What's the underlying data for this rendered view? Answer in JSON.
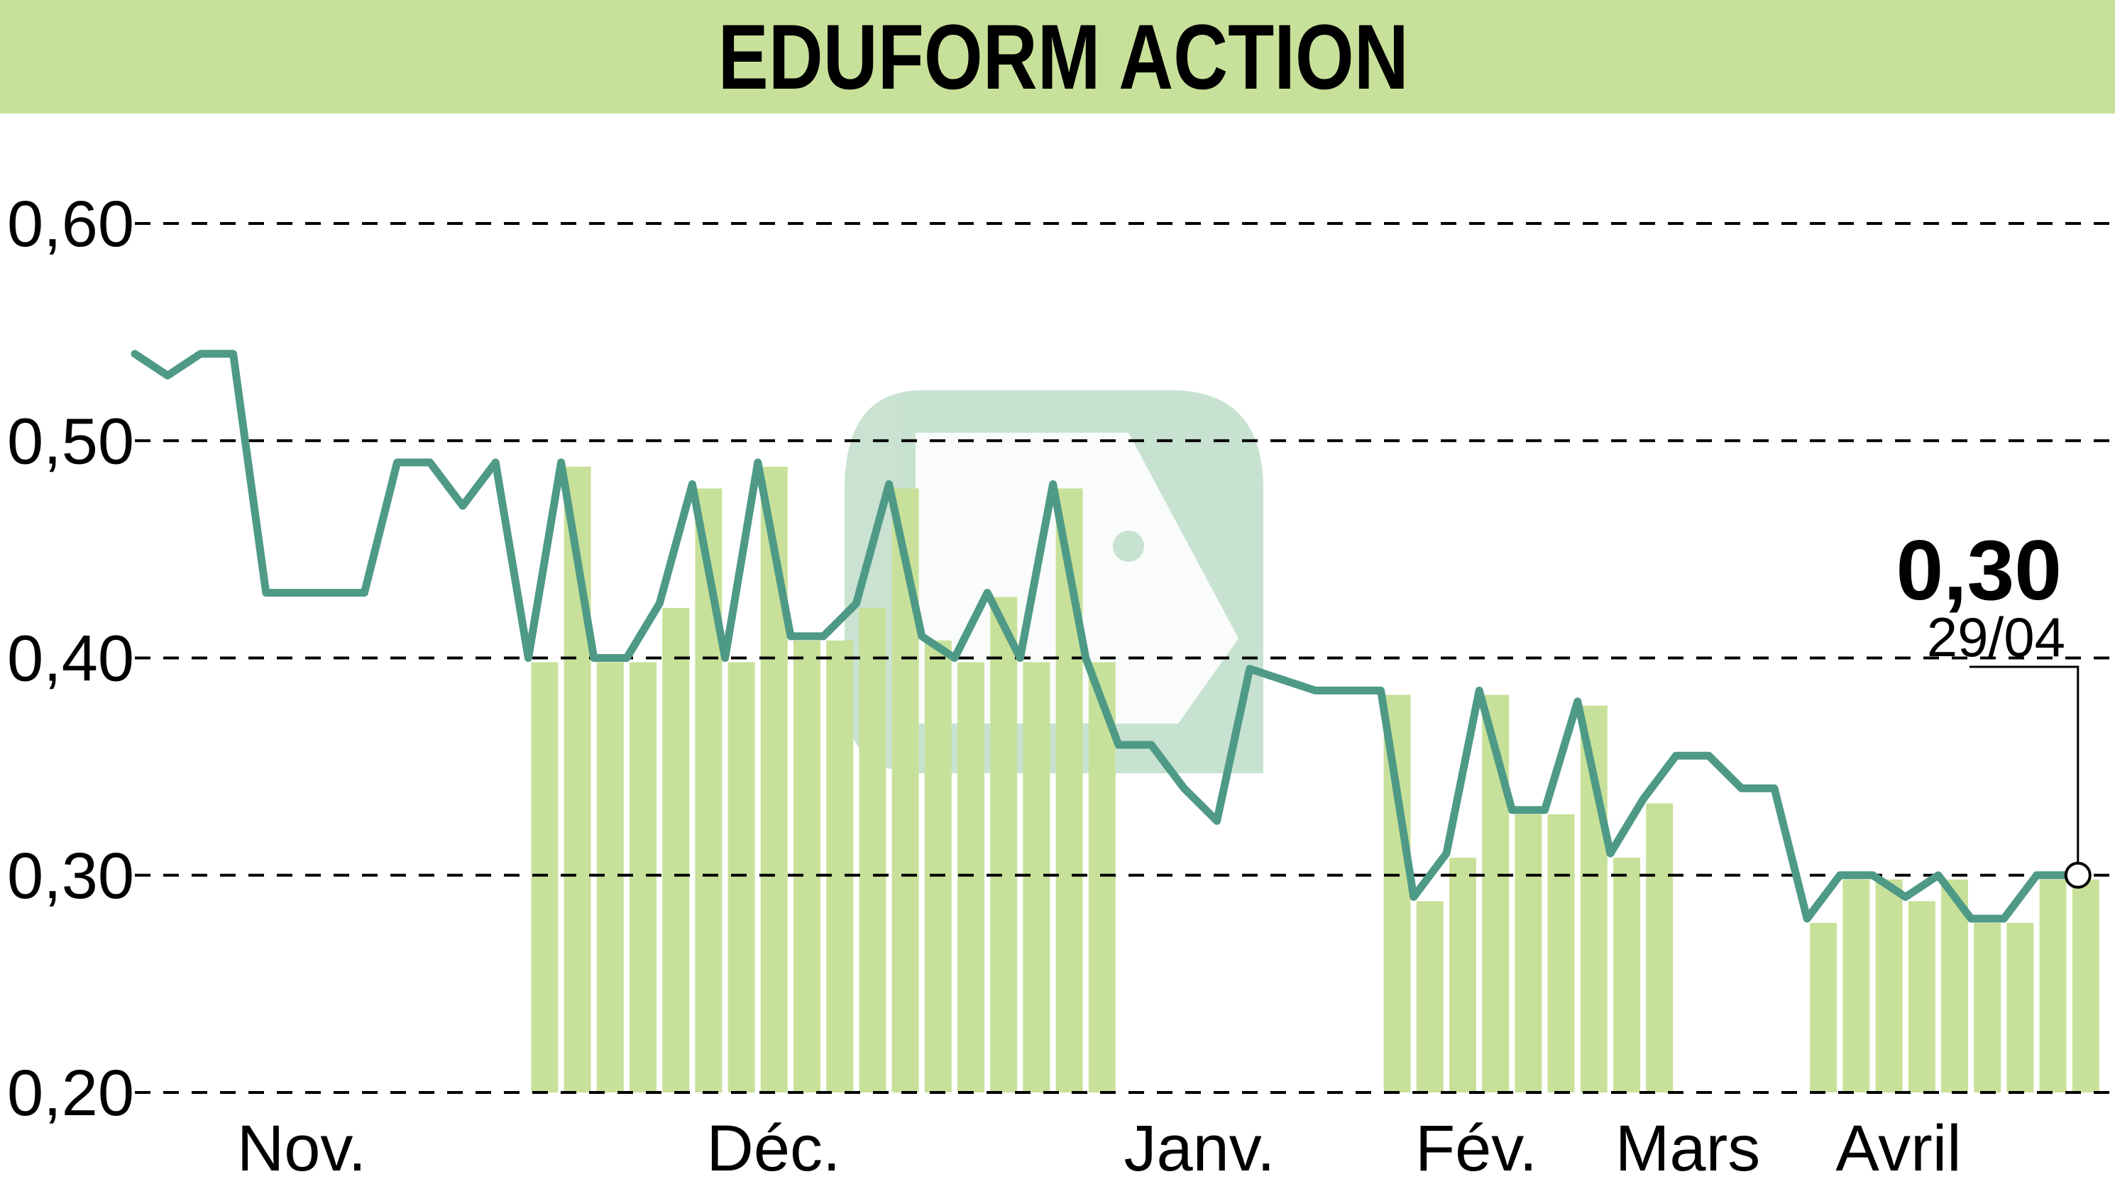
{
  "header": {
    "title": "EDUFORM ACTION"
  },
  "colors": {
    "band": "#c8e19a",
    "line": "#4e9a86",
    "bars": "#c8e19a",
    "grid": "#000000",
    "watermark": "#8fc3a3"
  },
  "chart_data": {
    "type": "line",
    "title": "EDUFORM ACTION",
    "ylim": [
      0.2,
      0.6
    ],
    "y_ticks": [
      {
        "value": 0.6,
        "label": "0,60"
      },
      {
        "value": 0.5,
        "label": "0,50"
      },
      {
        "value": 0.4,
        "label": "0,40"
      },
      {
        "value": 0.3,
        "label": "0,30"
      },
      {
        "value": 0.2,
        "label": "0,20"
      }
    ],
    "x_ticks": [
      "Nov.",
      "Déc.",
      "Janv.",
      "Fév.",
      "Mars",
      "Avril"
    ],
    "grid": true,
    "series": [
      {
        "values": [
          0.54,
          0.53,
          0.54,
          0.54,
          0.43,
          0.43,
          0.43,
          0.43,
          0.49,
          0.49,
          0.47,
          0.49,
          0.4,
          0.49,
          0.4,
          0.4,
          0.425,
          0.48,
          0.4,
          0.49,
          0.41,
          0.41,
          0.425,
          0.48,
          0.41,
          0.4,
          0.43,
          0.4,
          0.48,
          0.4,
          0.36,
          0.36,
          0.34,
          0.325,
          0.395,
          0.39,
          0.385,
          0.385,
          0.385,
          0.29,
          0.31,
          0.385,
          0.33,
          0.33,
          0.38,
          0.31,
          0.335,
          0.355,
          0.355,
          0.34,
          0.34,
          0.28,
          0.3,
          0.3,
          0.29,
          0.3,
          0.28,
          0.28,
          0.3,
          0.3
        ]
      }
    ],
    "volume_bars": [
      {
        "index": 12,
        "value": 0.4
      },
      {
        "index": 13,
        "value": 0.49
      },
      {
        "index": 14,
        "value": 0.4
      },
      {
        "index": 15,
        "value": 0.4
      },
      {
        "index": 16,
        "value": 0.425
      },
      {
        "index": 17,
        "value": 0.48
      },
      {
        "index": 18,
        "value": 0.4
      },
      {
        "index": 19,
        "value": 0.49
      },
      {
        "index": 20,
        "value": 0.41
      },
      {
        "index": 21,
        "value": 0.41
      },
      {
        "index": 22,
        "value": 0.425
      },
      {
        "index": 23,
        "value": 0.48
      },
      {
        "index": 24,
        "value": 0.41
      },
      {
        "index": 25,
        "value": 0.4
      },
      {
        "index": 26,
        "value": 0.43
      },
      {
        "index": 27,
        "value": 0.4
      },
      {
        "index": 28,
        "value": 0.48
      },
      {
        "index": 29,
        "value": 0.4
      },
      {
        "index": 38,
        "value": 0.385
      },
      {
        "index": 39,
        "value": 0.29
      },
      {
        "index": 40,
        "value": 0.31
      },
      {
        "index": 41,
        "value": 0.385
      },
      {
        "index": 42,
        "value": 0.33
      },
      {
        "index": 43,
        "value": 0.33
      },
      {
        "index": 44,
        "value": 0.38
      },
      {
        "index": 45,
        "value": 0.31
      },
      {
        "index": 46,
        "value": 0.335
      },
      {
        "index": 51,
        "value": 0.28
      },
      {
        "index": 52,
        "value": 0.3
      },
      {
        "index": 53,
        "value": 0.3
      },
      {
        "index": 54,
        "value": 0.29
      },
      {
        "index": 55,
        "value": 0.3
      },
      {
        "index": 56,
        "value": 0.28
      },
      {
        "index": 57,
        "value": 0.28
      },
      {
        "index": 58,
        "value": 0.3
      },
      {
        "index": 59,
        "value": 0.3
      }
    ],
    "last_value": {
      "label": "0,30",
      "date": "29/04",
      "value": 0.3
    }
  }
}
